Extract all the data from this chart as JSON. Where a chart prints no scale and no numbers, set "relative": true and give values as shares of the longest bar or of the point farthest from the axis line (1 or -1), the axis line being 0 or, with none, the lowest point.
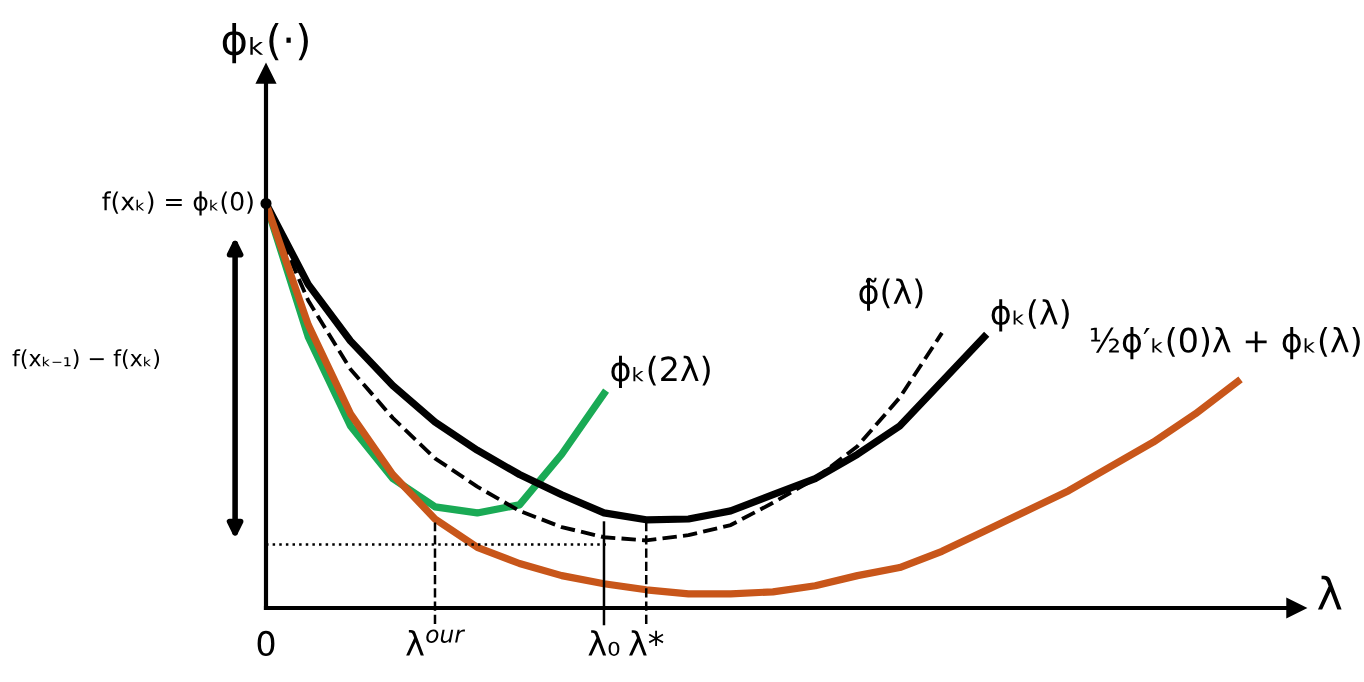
{
  "chart_data": {
    "type": "line",
    "relative": true,
    "ylabel": "ϕₖ(·)",
    "xlabel": "λ",
    "line_style": "solid",
    "marker": "none",
    "categories": [
      "0",
      null,
      null,
      null,
      "λ$^{our}$",
      null,
      null,
      null,
      "λ₀",
      "λ*",
      null,
      null,
      null,
      null,
      null,
      null,
      null,
      null,
      null,
      null,
      null,
      null,
      null,
      null
    ],
    "series": [
      {
        "name": "ϕₖ(2λ)",
        "color": "#1aaa55",
        "values": [
          1,
          0.67,
          0.45,
          0.32,
          0.25,
          0.235,
          0.255,
          0.38,
          0.53,
          null,
          null,
          null,
          null,
          null,
          null,
          null,
          null,
          null,
          null,
          null,
          null,
          null,
          null,
          null
        ]
      },
      {
        "name": "ϕ̃(λ)",
        "color": "#000000",
        "line_style": "dashed",
        "values": [
          1,
          0.76,
          0.59,
          0.47,
          0.37,
          0.3,
          0.24,
          0.2,
          0.175,
          0.167,
          0.18,
          0.205,
          0.26,
          0.32,
          0.4,
          0.52,
          0.68,
          null,
          null,
          null,
          null,
          null,
          null,
          null
        ]
      },
      {
        "name": "ϕₖ(λ)",
        "color": "#000000",
        "values": [
          1,
          0.8,
          0.66,
          0.55,
          0.46,
          0.39,
          0.33,
          0.28,
          0.235,
          0.218,
          0.22,
          0.24,
          0.28,
          0.32,
          0.38,
          0.45,
          0.56,
          0.67,
          null,
          null,
          null,
          null,
          null,
          null
        ]
      },
      {
        "name": "½ϕ′ₖ(0)λ + ϕₖ(λ)",
        "color": "#c8561a",
        "values": [
          1,
          0.7,
          0.48,
          0.33,
          0.22,
          0.15,
          0.11,
          0.08,
          0.06,
          0.045,
          0.035,
          0.035,
          0.04,
          0.055,
          0.08,
          0.1,
          0.14,
          0.19,
          0.24,
          0.29,
          0.35,
          0.41,
          0.48,
          0.56
        ]
      }
    ],
    "ref_lines": [
      {
        "axis": "x",
        "value": "λ$^{our}$",
        "line_style": "dashed",
        "color": "#000000"
      },
      {
        "axis": "x",
        "value": "λ₀",
        "line_style": "solid",
        "color": "#000000"
      },
      {
        "axis": "x",
        "value": "λ*",
        "line_style": "dashed",
        "color": "#000000"
      },
      {
        "axis": "y",
        "value": 0.157,
        "line_style": "dotted",
        "color": "#000000"
      }
    ],
    "annotations": [
      {
        "text": "f(xₖ) = ϕₖ(0)",
        "x": "0",
        "y": 1
      },
      "f(xₖ₋₁) − f(xₖ)"
    ]
  }
}
